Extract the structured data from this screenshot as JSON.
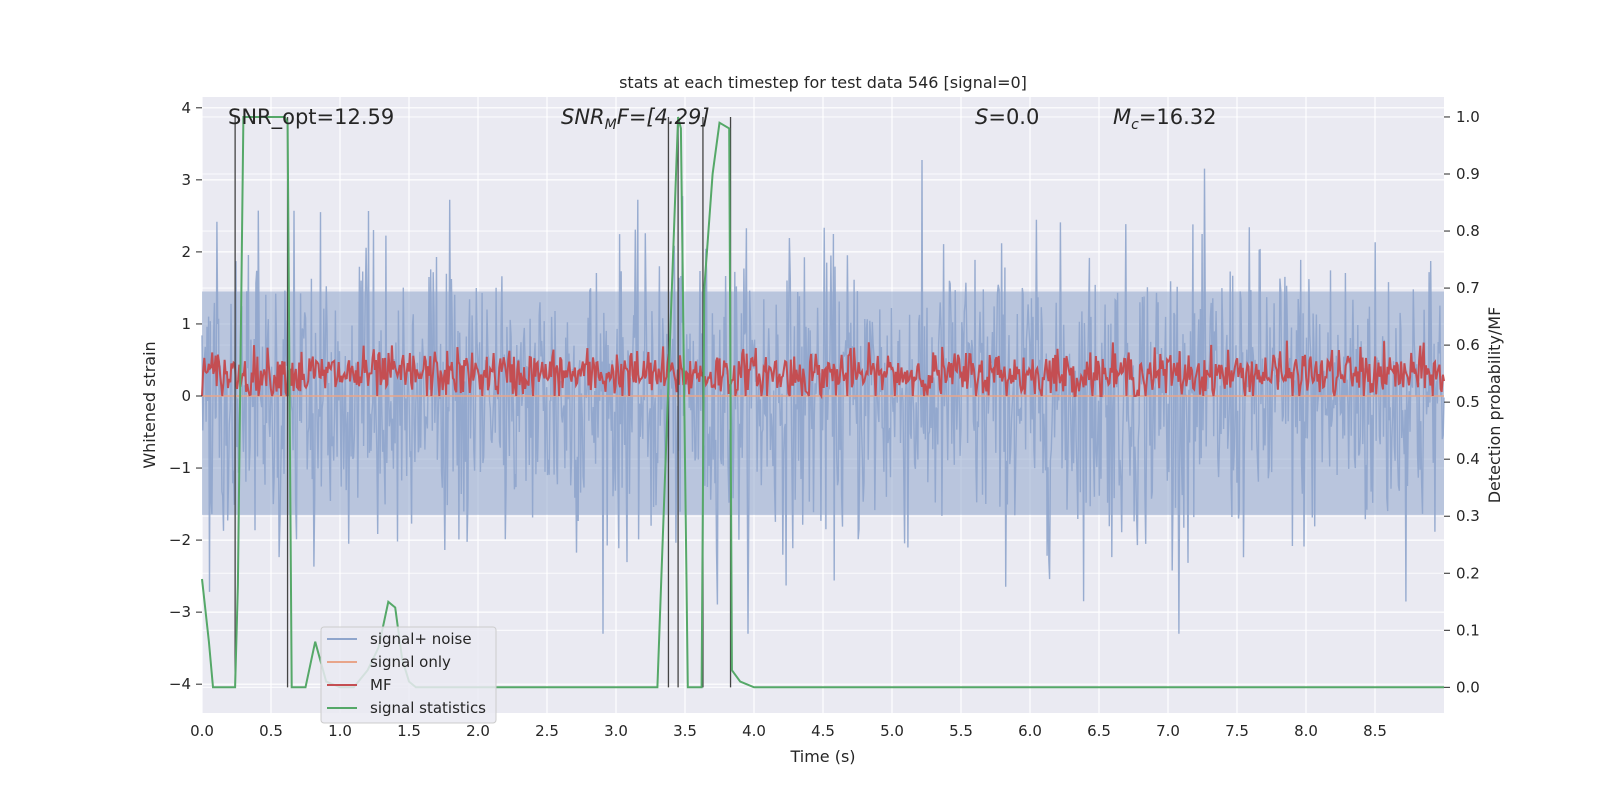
{
  "chart_data": {
    "type": "line",
    "title": "stats at each timestep for test data 546 [signal=0]",
    "xlabel": "Time (s)",
    "ylabel_left": "Whitened strain",
    "ylabel_right": "Detection probability/MF",
    "xlim": [
      0,
      9.0
    ],
    "ylim_left": [
      -4.4,
      4.15
    ],
    "ylim_right": [
      -0.045,
      1.035
    ],
    "xticks": [
      "0.0",
      "0.5",
      "1.0",
      "1.5",
      "2.0",
      "2.5",
      "3.0",
      "3.5",
      "4.0",
      "4.5",
      "5.0",
      "5.5",
      "6.0",
      "6.5",
      "7.0",
      "7.5",
      "8.0",
      "8.5"
    ],
    "yticks_left": [
      "4",
      "3",
      "2",
      "1",
      "0",
      "−1",
      "−2",
      "−3",
      "−4"
    ],
    "yticks_right": [
      "1.0",
      "0.9",
      "0.8",
      "0.7",
      "0.6",
      "0.5",
      "0.4",
      "0.3",
      "0.2",
      "0.1",
      "0.0"
    ],
    "grid": true,
    "legend_position": "lower-left",
    "annotations": {
      "snr_opt": "SNR_opt=12.59",
      "snr_mf_prefix": "SNR",
      "snr_mf_sub": "M",
      "snr_mf_suffix": "F=[4.29]",
      "s_label": "S",
      "s_value": "=0.0",
      "mc_label": "M",
      "mc_sub": "c",
      "mc_value": "=16.32"
    },
    "series": [
      {
        "name": "signal+ noise",
        "color": "#8fa5cc",
        "description": "whitened noise, amplitude roughly between -3.3 and 3.8"
      },
      {
        "name": "signal only",
        "color": "#e8a58a",
        "values_constant": 0.0
      },
      {
        "name": "MF",
        "color": "#c44e52",
        "range": [
          0.0,
          0.95
        ],
        "mean": 0.3
      },
      {
        "name": "signal statistics",
        "color": "#55a868",
        "x": [
          0.0,
          0.05,
          0.08,
          0.2,
          0.24,
          0.26,
          0.3,
          0.6,
          0.62,
          0.65,
          0.75,
          0.82,
          0.9,
          1.0,
          1.1,
          1.2,
          1.28,
          1.35,
          1.4,
          1.45,
          1.5,
          1.55,
          1.6,
          2.5,
          2.7,
          2.8,
          3.3,
          3.33,
          3.45,
          3.47,
          3.52,
          3.62,
          3.64,
          3.7,
          3.75,
          3.82,
          3.84,
          3.9,
          4.0,
          4.05,
          5.0,
          5.1,
          5.2,
          6.0,
          6.1,
          6.2,
          9.0
        ],
        "y": [
          0.19,
          0.08,
          0.0,
          0.0,
          0.0,
          0.18,
          1.0,
          1.0,
          0.99,
          0.0,
          0.0,
          0.08,
          0.01,
          0.0,
          0.0,
          0.03,
          0.07,
          0.15,
          0.14,
          0.05,
          0.01,
          0.0,
          0.0,
          0.0,
          0.0,
          0.0,
          0.0,
          0.2,
          1.0,
          0.98,
          0.0,
          0.0,
          0.7,
          0.9,
          0.99,
          0.98,
          0.03,
          0.01,
          0.0,
          0.0,
          0.0,
          0.0,
          0.0,
          0.0,
          0.0,
          0.0,
          0.0
        ]
      }
    ],
    "vertical_markers": [
      0.24,
      0.62,
      3.38,
      3.45,
      3.63,
      3.83
    ]
  }
}
